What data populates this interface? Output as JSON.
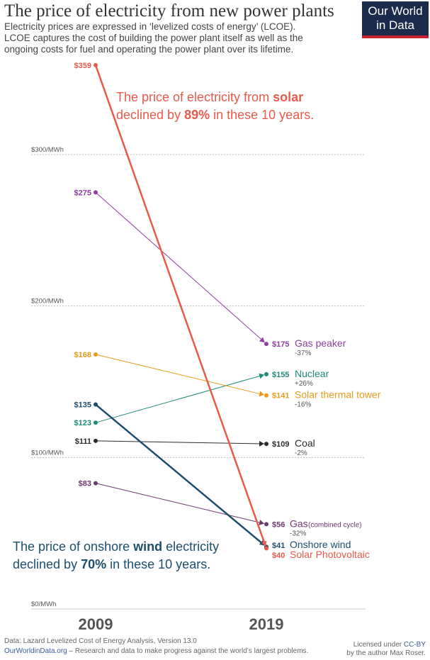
{
  "header": {
    "title": "The price of electricity from new power plants",
    "subtitle_lines": [
      "Electricity prices are expressed in ‘levelized costs of energy’ (LCOE).",
      "LCOE captures the cost of building the power plant itself as well as the",
      "ongoing costs for fuel and operating the power plant over its lifetime."
    ]
  },
  "logo": {
    "line1": "Our World",
    "line2": "in Data",
    "bg_color": "#1a2b4c",
    "accent_color": "#c8202f"
  },
  "chart_data": {
    "type": "slope",
    "x": [
      "2009",
      "2019"
    ],
    "ylim": [
      0,
      370
    ],
    "gridlines": [
      {
        "value": 0,
        "label": "$0/MWh"
      },
      {
        "value": 100,
        "label": "$100/MWh"
      },
      {
        "value": 200,
        "label": "$200/MWh"
      },
      {
        "value": 300,
        "label": "$300/MWh"
      }
    ],
    "series": [
      {
        "name": "Gas peaker",
        "v2009": 275,
        "v2019": 175,
        "label2009": "$275",
        "label2019": "$175",
        "change": "-37%",
        "color": "#8e3fa0",
        "width": 1,
        "suffix": ""
      },
      {
        "name": "Nuclear",
        "v2009": 123,
        "v2019": 155,
        "label2009": "$123",
        "label2019": "$155",
        "change": "+26%",
        "color": "#1f8a78",
        "width": 1,
        "suffix": ""
      },
      {
        "name": "Solar thermal tower",
        "v2009": 168,
        "v2019": 141,
        "label2009": "$168",
        "label2019": "$141",
        "change": "-16%",
        "color": "#e89a1a",
        "width": 1,
        "suffix": ""
      },
      {
        "name": "Coal",
        "v2009": 111,
        "v2019": 109,
        "label2009": "$111",
        "label2019": "$109",
        "change": "-2%",
        "color": "#2c2c2c",
        "width": 1,
        "suffix": ""
      },
      {
        "name": "Gas",
        "v2009": 83,
        "v2019": 56,
        "label2009": "$83",
        "label2019": "$56",
        "change": "-32%",
        "color": "#6b3a6e",
        "width": 1,
        "suffix": "(combined cycle)"
      },
      {
        "name": "Onshore wind",
        "v2009": 135,
        "v2019": 41,
        "label2009": "$135",
        "label2019": "$41",
        "change": "",
        "color": "#1d4e6e",
        "width": 2.5,
        "suffix": ""
      },
      {
        "name": "Solar Photovoltaic",
        "v2009": 359,
        "v2019": 40,
        "label2009": "$359",
        "label2019": "$40",
        "change": "",
        "color": "#e85a4a",
        "width": 2.5,
        "suffix": ""
      }
    ],
    "annotations": [
      {
        "id": "solar",
        "color": "#e85a4a",
        "line1_pre": "The price of electricity from ",
        "line1_bold": "solar",
        "line1_post": "",
        "line2_pre": "declined by ",
        "line2_bold": "89%",
        "line2_post": " in these 10 years."
      },
      {
        "id": "wind",
        "color": "#1d4e6e",
        "line1_pre": "The price of onshore ",
        "line1_bold": "wind",
        "line1_post": " electricity",
        "line2_pre": "declined by ",
        "line2_bold": "70%",
        "line2_post": " in these 10 years."
      }
    ]
  },
  "footer": {
    "source": "Data: Lazard Levelized Cost of Energy Analysis, Version 13.0",
    "site": "OurWorldinData.org",
    "tagline": " – Research and data to make progress against the world’s largest problems.",
    "license_pre": "Licensed under ",
    "license_link": "CC-BY",
    "author": "by the author Max Roser."
  }
}
